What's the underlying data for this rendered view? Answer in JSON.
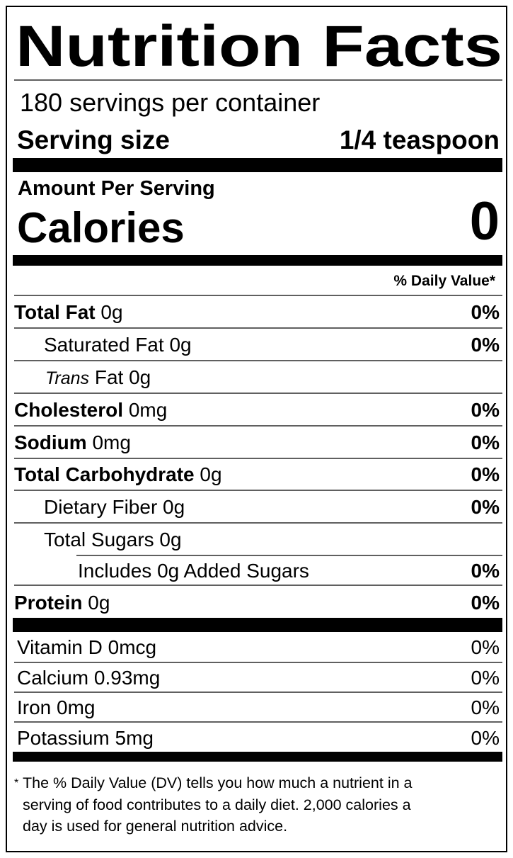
{
  "title": "Nutrition Facts",
  "servings": "180 servings per container",
  "serving_size": {
    "label": "Serving size",
    "value": "1/4 teaspoon"
  },
  "amount_per_serving": "Amount Per Serving",
  "calories": {
    "label": "Calories",
    "value": "0"
  },
  "dv_header": "% Daily Value*",
  "nutrients": [
    {
      "name": "Total Fat",
      "amount": "0g",
      "dv": "0%"
    },
    {
      "name": "Saturated Fat",
      "amount": "0g",
      "dv": "0%"
    },
    {
      "name_italic": "Trans",
      "name": "Fat",
      "amount": "0g"
    },
    {
      "name": "Cholesterol",
      "amount": "0mg",
      "dv": "0%"
    },
    {
      "name": "Sodium",
      "amount": "0mg",
      "dv": "0%"
    },
    {
      "name": "Total Carbohydrate",
      "amount": "0g",
      "dv": "0%"
    },
    {
      "name": "Dietary Fiber",
      "amount": "0g",
      "dv": "0%"
    },
    {
      "name": "Total Sugars",
      "amount": "0g"
    },
    {
      "name": "Includes 0g Added Sugars",
      "dv": "0%"
    },
    {
      "name": "Protein",
      "amount": "0g",
      "dv": "0%"
    }
  ],
  "vitamins": [
    {
      "name": "Vitamin D",
      "amount": "0mcg",
      "dv": "0%"
    },
    {
      "name": "Calcium",
      "amount": "0.93mg",
      "dv": "0%"
    },
    {
      "name": "Iron",
      "amount": "0mg",
      "dv": "0%"
    },
    {
      "name": "Potassium",
      "amount": "5mg",
      "dv": "0%"
    }
  ],
  "footnote": {
    "mark": "*",
    "lines": [
      "The % Daily Value (DV) tells you how much a nutrient in a",
      "serving of food contributes to a daily diet. 2,000 calories a",
      "day is used for general nutrition advice."
    ]
  }
}
